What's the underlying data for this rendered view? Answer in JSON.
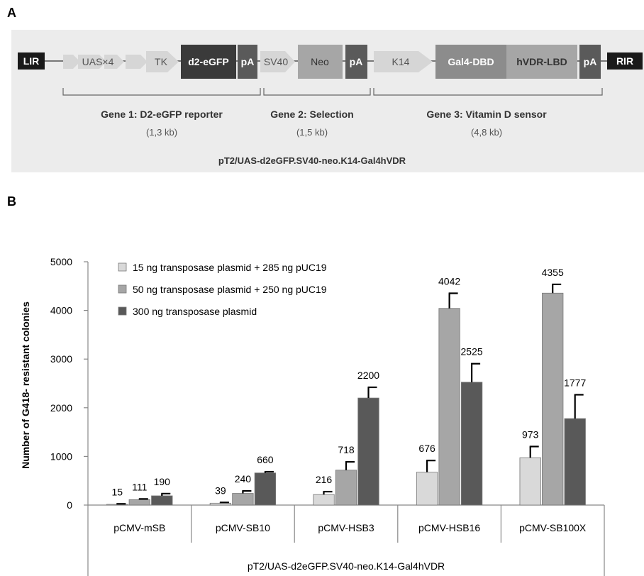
{
  "panel_a": {
    "label": "A",
    "segments": {
      "lir": "LIR",
      "uas": "UAS×4",
      "tk": "TK",
      "d2egfp": "d2-eGFP",
      "pa1": "pA",
      "sv40": "SV40",
      "neo": "Neo",
      "pa2": "pA",
      "k14": "K14",
      "gal4dbd": "Gal4-DBD",
      "hvdrlbd": "hVDR-LBD",
      "pa3": "pA",
      "rir": "RIR"
    },
    "genes": [
      {
        "title": "Gene 1: D2-eGFP reporter",
        "size": "(1,3 kb)"
      },
      {
        "title": "Gene 2: Selection",
        "size": "(1,5 kb)"
      },
      {
        "title": "Gene 3: Vitamin D sensor",
        "size": "(4,8 kb)"
      }
    ],
    "construct_name": "pT2/UAS-d2eGFP.SV40-neo.K14-Gal4hVDR"
  },
  "panel_b": {
    "label": "B"
  },
  "chart_data": {
    "type": "bar",
    "ylabel": "Number of G418- resistant colonies",
    "xlabel": "pT2/UAS-d2eGFP.SV40-neo.K14-Gal4hVDR",
    "ylim": [
      0,
      5000
    ],
    "yticks": [
      0,
      1000,
      2000,
      3000,
      4000,
      5000
    ],
    "grid": false,
    "legend_position": "top-left",
    "categories": [
      "pCMV-mSB",
      "pCMV-SB10",
      "pCMV-HSB3",
      "pCMV-HSB16",
      "pCMV-SB100X"
    ],
    "series": [
      {
        "name": "15 ng transposase plasmid + 285 ng pUC19",
        "color": "#d9d9d9",
        "values": [
          15,
          39,
          216,
          676,
          973
        ],
        "errors": [
          10,
          15,
          60,
          240,
          230
        ],
        "labels": [
          "15",
          "39",
          "216",
          "676",
          "973"
        ]
      },
      {
        "name": "50 ng transposase plasmid + 250 ng pUC19",
        "color": "#a6a6a6",
        "values": [
          111,
          240,
          718,
          4042,
          4355
        ],
        "errors": [
          15,
          50,
          170,
          310,
          180
        ],
        "labels": [
          "111",
          "240",
          "718",
          "4042",
          "4355"
        ]
      },
      {
        "name": "300 ng transposase plasmid",
        "color": "#595959",
        "values": [
          190,
          660,
          2200,
          2525,
          1777
        ],
        "errors": [
          45,
          25,
          220,
          380,
          490
        ],
        "labels": [
          "190",
          "660",
          "2200",
          "2525",
          "1777"
        ]
      }
    ]
  }
}
